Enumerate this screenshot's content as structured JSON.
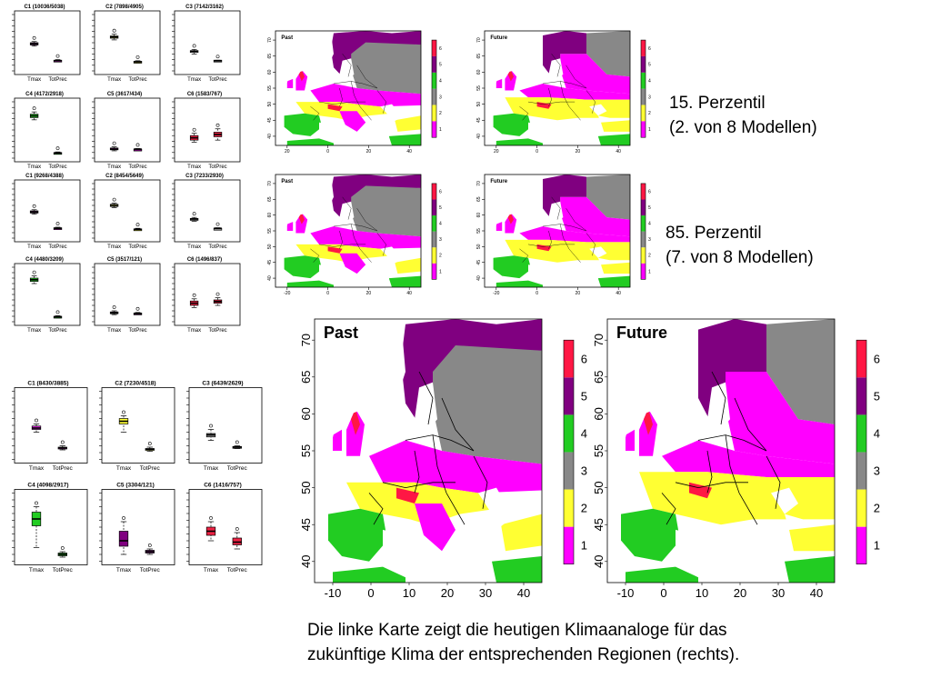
{
  "box_groups": [
    {
      "panels": [
        {
          "title": "C1 (10036/5038)",
          "color": "#dd22dd",
          "xlabels": [
            "Tmax",
            "TotPrec"
          ],
          "stats": [
            [
              0.44,
              0.46,
              0.48,
              0.5,
              0.52
            ],
            [
              0.16,
              0.17,
              0.18,
              0.19,
              0.2
            ]
          ]
        },
        {
          "title": "C2 (7898/4905)",
          "color": "#ffff33",
          "xlabels": [
            "Tmax",
            "TotPrec"
          ],
          "stats": [
            [
              0.55,
              0.58,
              0.6,
              0.62,
              0.65
            ],
            [
              0.14,
              0.15,
              0.16,
              0.17,
              0.18
            ]
          ]
        },
        {
          "title": "C3 (7142/3162)",
          "color": "#999999",
          "xlabels": [
            "Tmax",
            "TotPrec"
          ],
          "stats": [
            [
              0.3,
              0.33,
              0.35,
              0.36,
              0.38
            ],
            [
              0.17,
              0.18,
              0.18,
              0.19,
              0.19
            ]
          ]
        },
        {
          "title": "C4 (4172/2918)",
          "color": "#22cc22",
          "xlabels": [
            "Tmax",
            "TotPrec"
          ],
          "stats": [
            [
              0.68,
              0.72,
              0.75,
              0.78,
              0.82
            ],
            [
              0.07,
              0.08,
              0.09,
              0.1,
              0.11
            ]
          ]
        },
        {
          "title": "C5 (3617/434)",
          "color": "#800080",
          "xlabels": [
            "Tmax",
            "TotPrec"
          ],
          "stats": [
            [
              0.13,
              0.15,
              0.16,
              0.18,
              0.2
            ],
            [
              0.14,
              0.15,
              0.16,
              0.16,
              0.17
            ]
          ]
        },
        {
          "title": "C6 (1583/767)",
          "color": "#ee2244",
          "xlabels": [
            "Tmax",
            "TotPrec"
          ],
          "stats": [
            [
              0.28,
              0.32,
              0.36,
              0.4,
              0.44
            ],
            [
              0.32,
              0.38,
              0.42,
              0.46,
              0.52
            ]
          ]
        }
      ]
    },
    {
      "panels": [
        {
          "title": "C1 (9268/4388)",
          "color": "#dd22dd",
          "xlabels": [
            "Tmax",
            "TotPrec"
          ],
          "stats": [
            [
              0.44,
              0.46,
              0.48,
              0.5,
              0.52
            ],
            [
              0.16,
              0.17,
              0.18,
              0.19,
              0.2
            ]
          ]
        },
        {
          "title": "C2 (8454/5649)",
          "color": "#ffff33",
          "xlabels": [
            "Tmax",
            "TotPrec"
          ],
          "stats": [
            [
              0.56,
              0.58,
              0.6,
              0.62,
              0.64
            ],
            [
              0.14,
              0.15,
              0.16,
              0.17,
              0.18
            ]
          ]
        },
        {
          "title": "C3 (7233/2930)",
          "color": "#999999",
          "xlabels": [
            "Tmax",
            "TotPrec"
          ],
          "stats": [
            [
              0.31,
              0.33,
              0.35,
              0.36,
              0.38
            ],
            [
              0.16,
              0.17,
              0.18,
              0.18,
              0.19
            ]
          ]
        },
        {
          "title": "C4 (4480/3209)",
          "color": "#22cc22",
          "xlabels": [
            "Tmax",
            "TotPrec"
          ],
          "stats": [
            [
              0.7,
              0.74,
              0.77,
              0.8,
              0.84
            ],
            [
              0.07,
              0.08,
              0.09,
              0.1,
              0.11
            ]
          ]
        },
        {
          "title": "C5 (3517/121)",
          "color": "#800080",
          "xlabels": [
            "Tmax",
            "TotPrec"
          ],
          "stats": [
            [
              0.13,
              0.15,
              0.16,
              0.18,
              0.2
            ],
            [
              0.14,
              0.15,
              0.15,
              0.16,
              0.17
            ]
          ]
        },
        {
          "title": "C6 (1496/837)",
          "color": "#ee2244",
          "xlabels": [
            "Tmax",
            "TotPrec"
          ],
          "stats": [
            [
              0.26,
              0.3,
              0.34,
              0.38,
              0.42
            ],
            [
              0.3,
              0.34,
              0.37,
              0.4,
              0.44
            ]
          ]
        }
      ]
    },
    {
      "panels": [
        {
          "title": "C1 (8430/3885)",
          "color": "#dd22dd",
          "xlabels": [
            "Tmax",
            "TotPrec"
          ],
          "stats": [
            [
              0.4,
              0.44,
              0.46,
              0.49,
              0.52
            ],
            [
              0.14,
              0.16,
              0.17,
              0.18,
              0.2
            ]
          ]
        },
        {
          "title": "C2 (7230/4518)",
          "color": "#ffff33",
          "xlabels": [
            "Tmax",
            "TotPrec"
          ],
          "stats": [
            [
              0.4,
              0.52,
              0.56,
              0.6,
              0.64
            ],
            [
              0.12,
              0.14,
              0.15,
              0.16,
              0.18
            ]
          ]
        },
        {
          "title": "C3 (6439/2629)",
          "color": "#999999",
          "xlabels": [
            "Tmax",
            "TotPrec"
          ],
          "stats": [
            [
              0.28,
              0.33,
              0.36,
              0.38,
              0.44
            ],
            [
              0.16,
              0.17,
              0.18,
              0.19,
              0.2
            ]
          ]
        },
        {
          "title": "C4 (4098/2917)",
          "color": "#22cc22",
          "xlabels": [
            "Tmax",
            "TotPrec"
          ],
          "stats": [
            [
              0.2,
              0.52,
              0.62,
              0.72,
              0.8
            ],
            [
              0.06,
              0.08,
              0.1,
              0.12,
              0.14
            ]
          ]
        },
        {
          "title": "C5 (3304/121)",
          "color": "#800080",
          "xlabels": [
            "Tmax",
            "TotPrec"
          ],
          "stats": [
            [
              0.1,
              0.22,
              0.3,
              0.44,
              0.58
            ],
            [
              0.1,
              0.12,
              0.14,
              0.16,
              0.18
            ]
          ]
        },
        {
          "title": "C6 (1416/757)",
          "color": "#ee2244",
          "xlabels": [
            "Tmax",
            "TotPrec"
          ],
          "stats": [
            [
              0.3,
              0.38,
              0.44,
              0.5,
              0.58
            ],
            [
              0.18,
              0.24,
              0.28,
              0.34,
              0.42
            ]
          ]
        }
      ]
    }
  ],
  "map_rows": [
    {
      "maps": [
        {
          "title": "Past"
        },
        {
          "title": "Future"
        }
      ]
    },
    {
      "maps": [
        {
          "title": "Past"
        },
        {
          "title": "Future"
        }
      ]
    },
    {
      "maps": [
        {
          "title": "Past"
        },
        {
          "title": "Future"
        }
      ]
    }
  ],
  "map_axes": {
    "x_ticks_small": [
      "20",
      "0",
      "20",
      "40"
    ],
    "x_ticks_small_alt": [
      "-20",
      "0",
      "20",
      "40"
    ],
    "y_ticks_small": [
      "40",
      "45",
      "50",
      "55",
      "60",
      "65",
      "70"
    ],
    "x_ticks_large": [
      "-10",
      "0",
      "10",
      "20",
      "30",
      "40"
    ],
    "y_ticks_large": [
      "40",
      "45",
      "50",
      "55",
      "60",
      "65",
      "70"
    ]
  },
  "legend": {
    "labels": [
      "1",
      "2",
      "3",
      "4",
      "5",
      "6"
    ],
    "colors": [
      "#ff00ff",
      "#ffff33",
      "#888888",
      "#22cc22",
      "#800080",
      "#ff1744"
    ]
  },
  "map_colors": {
    "sea": "#ffffff",
    "border": "#000000"
  },
  "notes": {
    "p15_line1": "15. Perzentil",
    "p15_line2": "(2. von 8 Modellen)",
    "p85_line1": "85. Perzentil",
    "p85_line2": "(7. von 8 Modellen)"
  },
  "caption": {
    "line1": "Die linke Karte zeigt die heutigen Klimaanaloge für das",
    "line2": "zukünftige Klima der entsprechenden Regionen (rechts)."
  }
}
